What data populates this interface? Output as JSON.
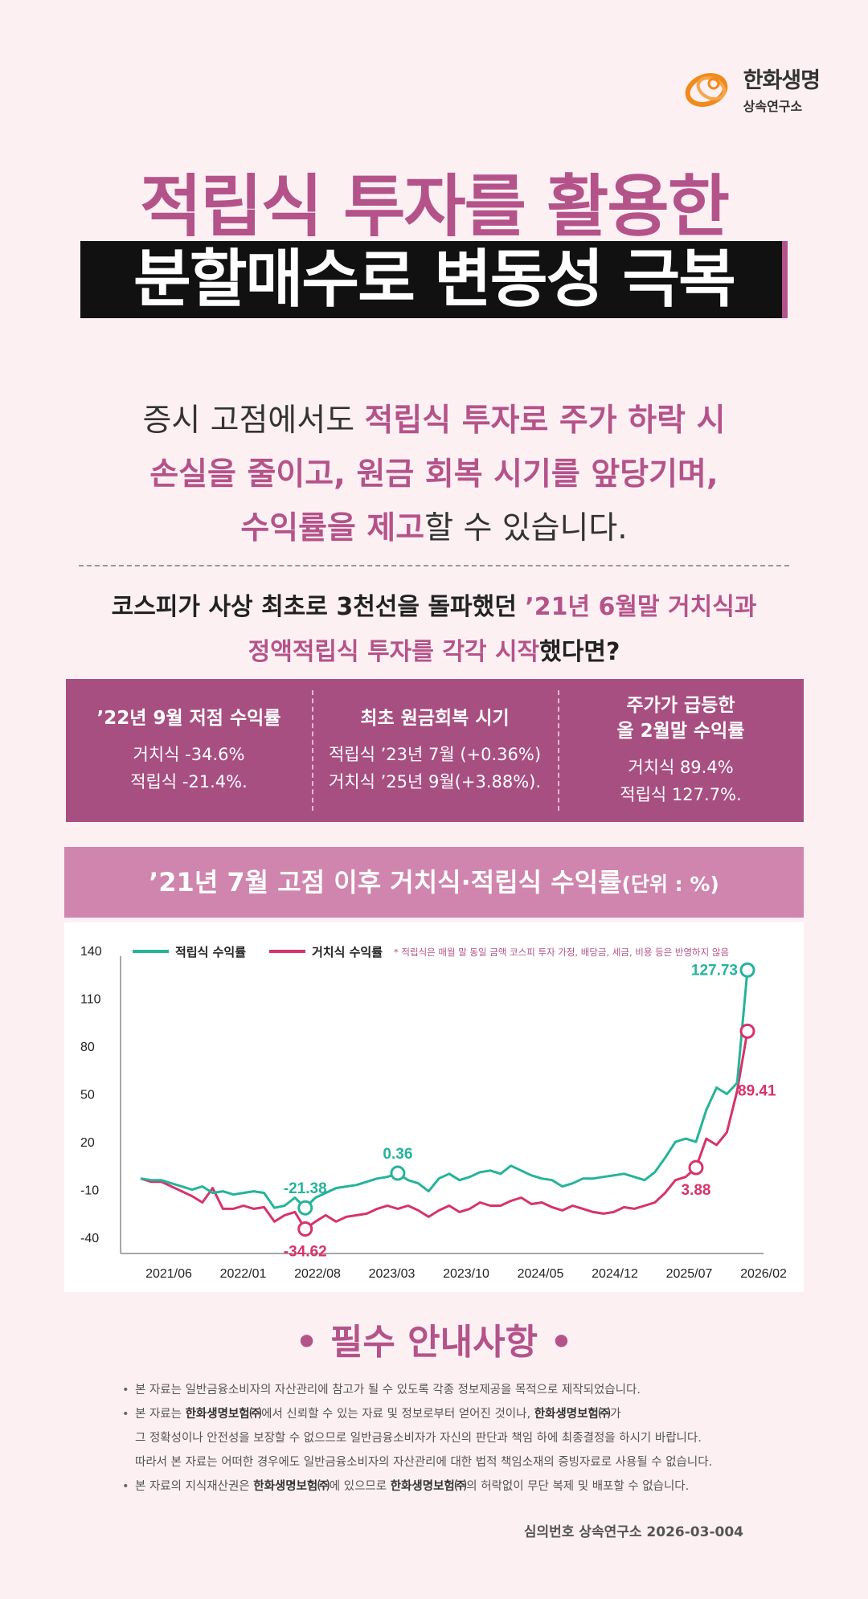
{
  "brand": {
    "name": "한화생명",
    "sub": "상속연구소"
  },
  "title": {
    "line1": "적립식 투자를 활용한",
    "line2": "분할매수로 변동성 극복"
  },
  "intro": {
    "l1_a": "증시 고점에서도 ",
    "l1_b": "적립식 투자로 주가 하락 시",
    "l2": "손실을 줄이고, 원금 회복 시기를 앞당기며,",
    "l3_a": "수익률을 제고",
    "l3_b": "할 수 있습니다."
  },
  "question": {
    "l1_a": "코스피가 사상 최초로 3천선을 돌파했던 ",
    "l1_b": "’21년 6월말 거치식과",
    "l2_a": "정액적립식 투자를 각각 시작",
    "l2_b": "했다면?"
  },
  "stats": [
    {
      "title": "’22년 9월 저점 수익률",
      "lines": [
        "거치식  -34.6%",
        "적립식  -21.4%."
      ]
    },
    {
      "title": "최초 원금회복 시기",
      "lines": [
        "적립식 ’23년 7월 (+0.36%)",
        "거치식 ’25년 9월(+3.88%)."
      ]
    },
    {
      "title": "주가가 급등한\n올 2월말 수익률",
      "lines": [
        "거치식 89.4%",
        "적립식 127.7%."
      ]
    }
  ],
  "chart_head": {
    "title": "’21년 7월 고점 이후 거치식·적립식 수익률",
    "unit": "(단위 : %)"
  },
  "chart_data": {
    "type": "line",
    "legend_position": "top-left",
    "grid": false,
    "note": "* 적립식은 매월 말 동일 금액 코스피 투자 가정, 배당금, 세금, 비용 등은 반영하지 않음",
    "ylim": [
      -50,
      145
    ],
    "yticks": [
      140,
      110,
      80,
      50,
      20,
      -10,
      -40
    ],
    "xtick_labels": [
      "2021/06",
      "2022/01",
      "2022/08",
      "2023/03",
      "2023/10",
      "2024/05",
      "2024/12",
      "2025/07",
      "2026/02"
    ],
    "series": [
      {
        "name": "거치식 수익률",
        "color": "#d6336c",
        "values": [
          -3,
          -5,
          -5,
          -8,
          -11,
          -14,
          -18,
          -9,
          -22,
          -22,
          -20,
          -22,
          -21,
          -30,
          -26,
          -24,
          -34.62,
          -30,
          -26,
          -30,
          -27,
          -26,
          -25,
          -22,
          -20,
          -22,
          -20,
          -23,
          -27,
          -23,
          -20,
          -24,
          -22,
          -18,
          -20,
          -20,
          -17,
          -15,
          -19,
          -18,
          -21,
          -23,
          -20,
          -22,
          -24,
          -25,
          -24,
          -21,
          -22,
          -20,
          -18,
          -12,
          -4,
          -2,
          3.88,
          22,
          18,
          26,
          52,
          89.41
        ]
      },
      {
        "name": "적립식 수익률",
        "color": "#26b39a",
        "values": [
          -3,
          -4,
          -4,
          -6,
          -8,
          -10,
          -8,
          -12,
          -11,
          -13,
          -12,
          -11,
          -12,
          -21.38,
          -20,
          -15,
          -21.38,
          -15,
          -12,
          -9,
          -8,
          -7,
          -5,
          -3,
          -2,
          0.36,
          -4,
          -6,
          -11,
          -3,
          0,
          -4,
          -2,
          1,
          2,
          0,
          5,
          2,
          -1,
          -3,
          -4,
          -8,
          -6,
          -3,
          -3,
          -2,
          -1,
          0,
          -2,
          -4,
          1,
          10,
          20,
          22,
          20,
          40,
          54,
          50,
          57,
          127.73
        ]
      }
    ],
    "annotations": [
      {
        "series": 1,
        "index": 16,
        "label": "-21.38",
        "color": "#26b39a"
      },
      {
        "series": 1,
        "index": 25,
        "label": "0.36",
        "color": "#26b39a"
      },
      {
        "series": 1,
        "index": 59,
        "label": "127.73",
        "color": "#26b39a"
      },
      {
        "series": 0,
        "index": 16,
        "label": "-34.62",
        "color": "#d6336c"
      },
      {
        "series": 0,
        "index": 54,
        "label": "3.88",
        "color": "#d6336c"
      },
      {
        "series": 0,
        "index": 59,
        "label": "89.41",
        "color": "#d6336c"
      }
    ]
  },
  "must": {
    "title": "• 필수 안내사항 •"
  },
  "notes": {
    "n1": "본 자료는 일반금융소비자의 자산관리에 참고가 될 수 있도록 각종 정보제공을 목적으로 제작되었습니다.",
    "n2_a": "본 자료는 ",
    "n2_b": "한화생명보험㈜",
    "n2_c": "에서 신뢰할 수 있는 자료 및 정보로부터 얻어진 것이나, ",
    "n2_d": "한화생명보험㈜",
    "n2_e": "가",
    "n2_2": "그 정확성이나 안전성을 보장할 수 없으므로 일반금융소비자가 자신의 판단과 책임 하에 최종결정을 하시기 바랍니다.",
    "n2_3": "따라서 본 자료는 어떠한 경우에도 일반금융소비자의 자산관리에 대한 법적 책임소재의 증빙자료로 사용될 수 없습니다.",
    "n3_a": "본 자료의 지식재산권은 ",
    "n3_b": "한화생명보험㈜",
    "n3_c": "에 있으므로 ",
    "n3_d": "한화생명보험㈜",
    "n3_e": "의 허락없이 무단 복제 및 배포할 수 없습니다."
  },
  "review": "심의번호 상속연구소 2026-03-004"
}
